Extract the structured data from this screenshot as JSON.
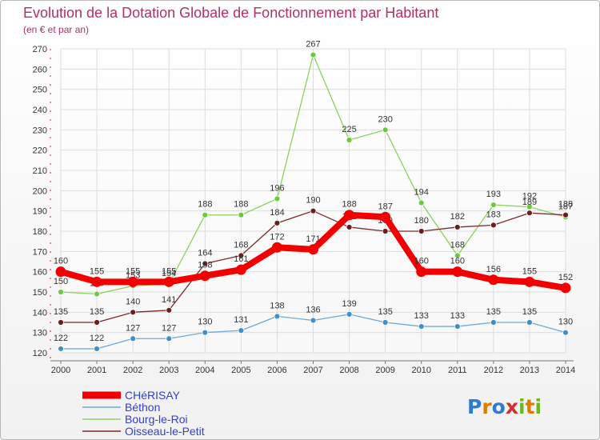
{
  "chart_data": {
    "type": "line",
    "title": "Evolution de la Dotation Globale de Fonctionnement par Habitant",
    "subtitle": "(en € et par an)",
    "x": [
      "2000",
      "2001",
      "2002",
      "2003",
      "2004",
      "2005",
      "2006",
      "2007",
      "2008",
      "2009",
      "2010",
      "2011",
      "2012",
      "2013",
      "2014"
    ],
    "ylim": [
      120,
      270
    ],
    "yticks": [
      120,
      130,
      140,
      150,
      160,
      170,
      180,
      190,
      200,
      210,
      220,
      230,
      240,
      250,
      260,
      270
    ],
    "grid": true,
    "series": [
      {
        "name": "Bourg-le-Roi",
        "color": "#8bd15e",
        "point_color": "#6cc93f",
        "values": [
          150,
          149,
          153,
          154,
          188,
          188,
          196,
          267,
          225,
          230,
          194,
          168,
          193,
          192,
          187
        ],
        "labels": [
          "150",
          "149",
          "153",
          "154",
          "188",
          "188",
          "196",
          "267",
          "225",
          "230",
          "194",
          "168",
          "193",
          "192",
          "187"
        ]
      },
      {
        "name": "Oisseau-le-Petit",
        "color": "#7a2a2a",
        "point_color": "#6a1e1e",
        "values": [
          135,
          135,
          140,
          141,
          164,
          168,
          184,
          190,
          182,
          180,
          180,
          182,
          183,
          189,
          188
        ],
        "labels": [
          "135",
          "135",
          "140",
          "141",
          "164",
          "168",
          "184",
          "190",
          "182",
          "180",
          "180",
          "182",
          "183",
          "189",
          "188"
        ]
      },
      {
        "name": "Béthon",
        "color": "#6fa8d6",
        "point_color": "#3e8fcb",
        "values": [
          122,
          122,
          127,
          127,
          130,
          131,
          138,
          136,
          139,
          135,
          133,
          133,
          135,
          135,
          130
        ],
        "labels": [
          "122",
          "122",
          "127",
          "127",
          "130",
          "131",
          "138",
          "136",
          "139",
          "135",
          "133",
          "133",
          "135",
          "135",
          "130"
        ]
      },
      {
        "name": "CHéRISAY",
        "color": "#f20000",
        "point_color": "#f20000",
        "values": [
          160,
          155,
          155,
          155,
          158,
          161,
          172,
          171,
          188,
          187,
          160,
          160,
          156,
          155,
          152
        ],
        "labels": [
          "160",
          "155",
          "155",
          "155",
          "158",
          "161",
          "172",
          "171",
          "188",
          "187",
          "160",
          "160",
          "156",
          "155",
          "152"
        ]
      }
    ],
    "legend": [
      "CHéRISAY",
      "Béthon",
      "Bourg-le-Roi",
      "Oisseau-le-Petit"
    ],
    "legend_position": "bottom-left"
  },
  "logo": {
    "text": "Proxiti",
    "letters": [
      "P",
      "r",
      "o",
      "x",
      "i",
      "t",
      "i"
    ],
    "colors": [
      "#2e7bd3",
      "#e07b00",
      "#2e7bd3",
      "#d62d2d",
      "#6fb51f",
      "#e07b00",
      "#6fb51f"
    ]
  }
}
